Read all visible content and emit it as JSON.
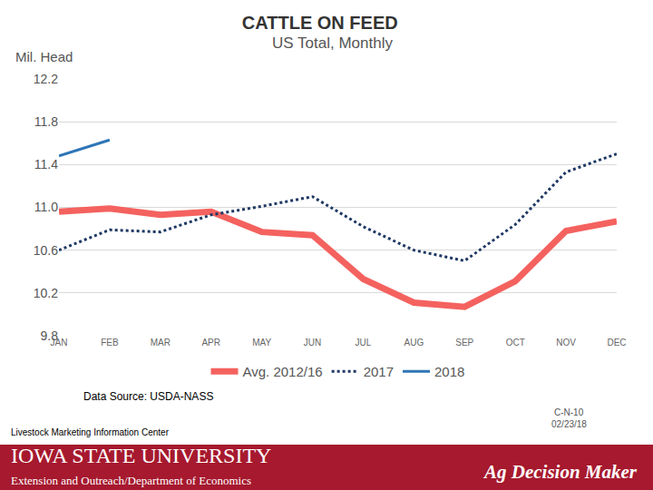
{
  "chart_data": {
    "type": "line",
    "title": "CATTLE ON FEED",
    "subtitle": "US Total, Monthly",
    "y_label": "Mil. Head",
    "categories": [
      "JAN",
      "FEB",
      "MAR",
      "APR",
      "MAY",
      "JUN",
      "JUL",
      "AUG",
      "SEP",
      "OCT",
      "NOV",
      "DEC"
    ],
    "series": [
      {
        "name": "Avg. 2012/16",
        "color": "#f4625f",
        "line_style": "solid",
        "values": [
          10.96,
          10.99,
          10.93,
          10.96,
          10.77,
          10.74,
          10.33,
          10.11,
          10.07,
          10.31,
          10.78,
          10.87
        ]
      },
      {
        "name": "2017",
        "color": "#1f3864",
        "line_style": "dot",
        "values": [
          10.6,
          10.79,
          10.77,
          10.93,
          11.01,
          11.1,
          10.82,
          10.6,
          10.5,
          10.84,
          11.33,
          11.5
        ]
      },
      {
        "name": "2018",
        "color": "#2e75b6",
        "line_style": "solid",
        "values": [
          11.48,
          11.63,
          null,
          null,
          null,
          null,
          null,
          null,
          null,
          null,
          null,
          null
        ]
      }
    ],
    "ylim": [
      9.8,
      12.2
    ],
    "yticks": [
      9.8,
      10.2,
      10.6,
      {
        "value": 11,
        "label": "11.0"
      },
      11.4,
      11.8,
      12.2
    ],
    "grid": true,
    "legend": "bottom",
    "annotations": [
      "Data Source: USDA-NASS",
      "Livestock Marketing Information Center",
      "C-N-10",
      "02/23/18",
      "IOWA STATE UNIVERSITY",
      "Extension and Outreach/Department of Economics",
      "Ag Decision Maker"
    ]
  }
}
